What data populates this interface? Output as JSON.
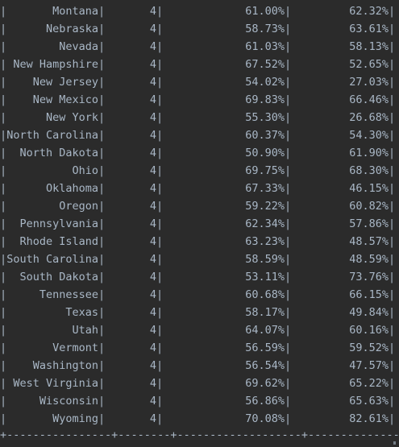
{
  "table": {
    "rows": [
      {
        "state": "Montana",
        "count": "4",
        "p1": "61.00%",
        "p2": "62.32%"
      },
      {
        "state": "Nebraska",
        "count": "4",
        "p1": "58.73%",
        "p2": "63.61%"
      },
      {
        "state": "Nevada",
        "count": "4",
        "p1": "61.03%",
        "p2": "58.13%"
      },
      {
        "state": "New Hampshire",
        "count": "4",
        "p1": "67.52%",
        "p2": "52.65%"
      },
      {
        "state": "New Jersey",
        "count": "4",
        "p1": "54.02%",
        "p2": "27.03%"
      },
      {
        "state": "New Mexico",
        "count": "4",
        "p1": "69.83%",
        "p2": "66.46%"
      },
      {
        "state": "New York",
        "count": "4",
        "p1": "55.30%",
        "p2": "26.68%"
      },
      {
        "state": "North Carolina",
        "count": "4",
        "p1": "60.37%",
        "p2": "54.30%"
      },
      {
        "state": "North Dakota",
        "count": "4",
        "p1": "50.90%",
        "p2": "61.90%"
      },
      {
        "state": "Ohio",
        "count": "4",
        "p1": "69.75%",
        "p2": "68.30%"
      },
      {
        "state": "Oklahoma",
        "count": "4",
        "p1": "67.33%",
        "p2": "46.15%"
      },
      {
        "state": "Oregon",
        "count": "4",
        "p1": "59.22%",
        "p2": "60.82%"
      },
      {
        "state": "Pennsylvania",
        "count": "4",
        "p1": "62.34%",
        "p2": "57.86%"
      },
      {
        "state": "Rhode Island",
        "count": "4",
        "p1": "63.23%",
        "p2": "48.57%"
      },
      {
        "state": "South Carolina",
        "count": "4",
        "p1": "58.59%",
        "p2": "48.59%"
      },
      {
        "state": "South Dakota",
        "count": "4",
        "p1": "53.11%",
        "p2": "73.76%"
      },
      {
        "state": "Tennessee",
        "count": "4",
        "p1": "60.68%",
        "p2": "66.15%"
      },
      {
        "state": "Texas",
        "count": "4",
        "p1": "58.17%",
        "p2": "49.84%"
      },
      {
        "state": "Utah",
        "count": "4",
        "p1": "64.07%",
        "p2": "60.16%"
      },
      {
        "state": "Vermont",
        "count": "4",
        "p1": "56.59%",
        "p2": "59.52%"
      },
      {
        "state": "Washington",
        "count": "4",
        "p1": "56.54%",
        "p2": "47.57%"
      },
      {
        "state": "West Virginia",
        "count": "4",
        "p1": "69.62%",
        "p2": "65.22%"
      },
      {
        "state": "Wisconsin",
        "count": "4",
        "p1": "56.86%",
        "p2": "65.63%"
      },
      {
        "state": "Wyoming",
        "count": "4",
        "p1": "70.08%",
        "p2": "82.61%"
      }
    ],
    "separator": "|",
    "bottom_border": "+----------------+--------+-------------------+----------------+"
  },
  "colors": {
    "background": "#2b2b2b",
    "text": "#a9b7c6"
  }
}
